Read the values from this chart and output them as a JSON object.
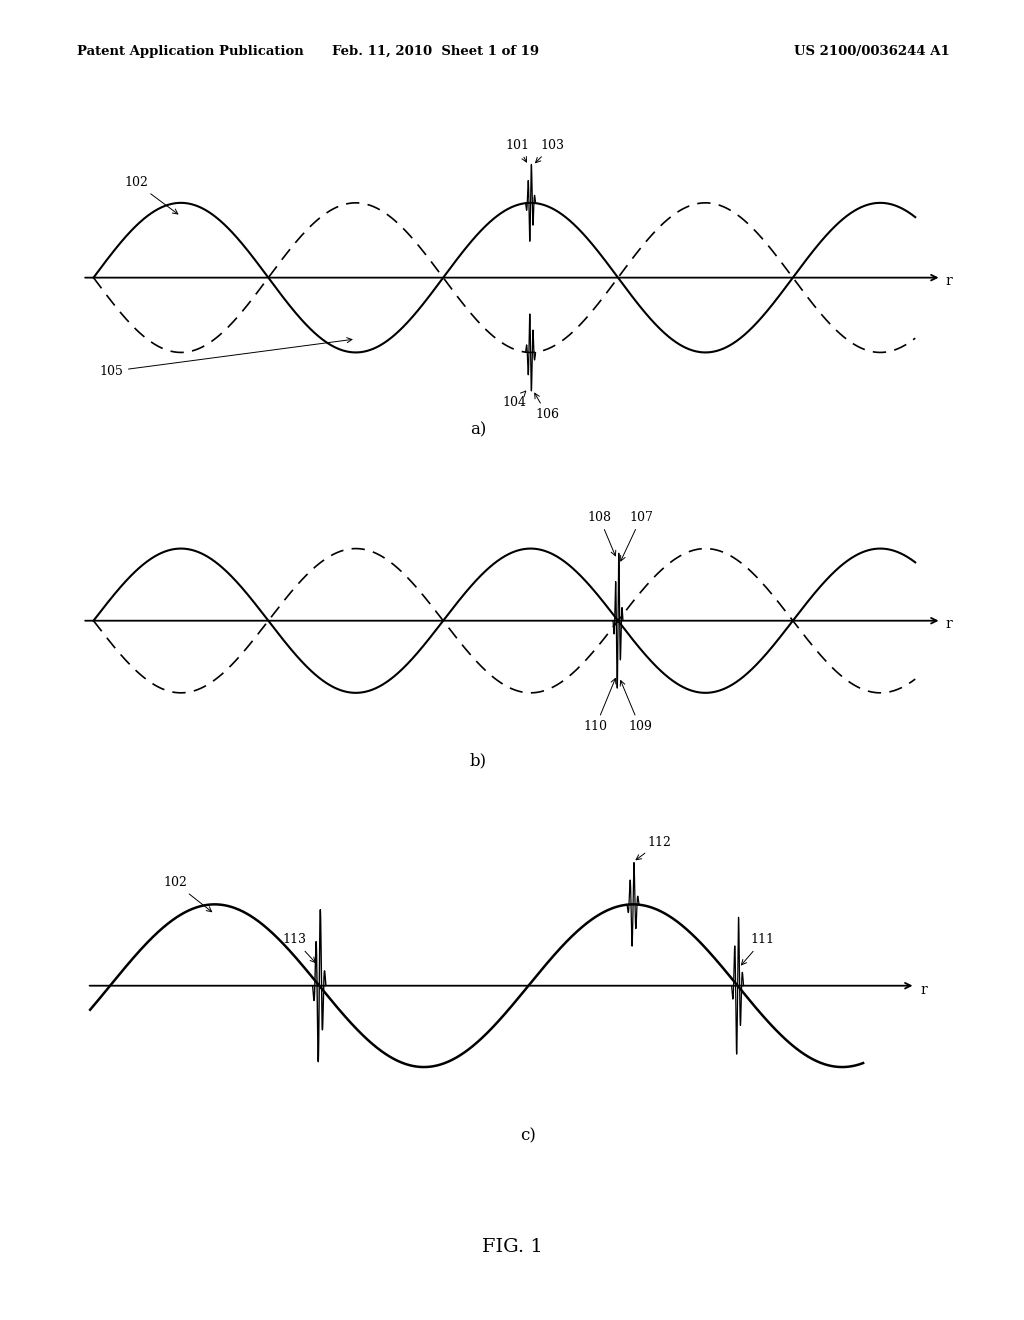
{
  "header_left": "Patent Application Publication",
  "header_center": "Feb. 11, 2010  Sheet 1 of 19",
  "header_right": "US 2100/0036244 A1",
  "footer": "FIG. 1",
  "bg": "#ffffff",
  "lc": "#000000",
  "dc": "#666666",
  "panel_a_label": "a)",
  "panel_b_label": "b)",
  "panel_c_label": "c)",
  "r_label": "r",
  "anno_a": {
    "101": "101",
    "102": "102",
    "103": "103",
    "104": "104",
    "105": "105",
    "106": "106"
  },
  "anno_b": {
    "107": "107",
    "108": "108",
    "109": "109",
    "110": "110"
  },
  "anno_c": {
    "111": "111",
    "112": "112",
    "113": "113",
    "102c": "102"
  }
}
